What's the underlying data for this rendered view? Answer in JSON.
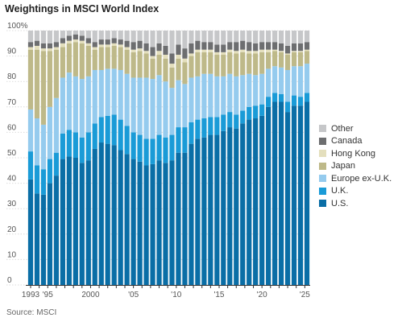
{
  "title": "Weightings in MSCI World Index",
  "source": "Source: MSCI",
  "colors": {
    "U.S.": "#0a6ea6",
    "U.K.": "#1a9bd7",
    "Europe ex-U.K.": "#95cbee",
    "Japan": "#beb989",
    "Hong Kong": "#e4dfbd",
    "Canada": "#6d6e70",
    "Other": "#c6c7c9"
  },
  "chart_data": {
    "type": "bar",
    "stacked": true,
    "ylim": [
      0,
      100
    ],
    "yticks": [
      "0",
      "10",
      "20",
      "30",
      "40",
      "50",
      "60",
      "70",
      "80",
      "90",
      "100%"
    ],
    "xtick_labels": [
      {
        "year": 1993,
        "label": "1993"
      },
      {
        "year": 1995,
        "label": "'95"
      },
      {
        "year": 2000,
        "label": "2000"
      },
      {
        "year": 2005,
        "label": "'05"
      },
      {
        "year": 2010,
        "label": "'10"
      },
      {
        "year": 2015,
        "label": "'15"
      },
      {
        "year": 2020,
        "label": "'20"
      },
      {
        "year": 2025,
        "label": "'25"
      }
    ],
    "legend_position": "right",
    "legend_order": [
      "Other",
      "Canada",
      "Hong Kong",
      "Japan",
      "Europe ex-U.K.",
      "U.K.",
      "U.S."
    ],
    "categories": [
      "1993 Q1",
      "1993 Q4",
      "1994 Q3",
      "1995 Q2",
      "1996 Q1",
      "1996 Q4",
      "1997 Q3",
      "1998 Q2",
      "1999 Q1",
      "1999 Q4",
      "2000 Q3",
      "2001 Q2",
      "2002 Q1",
      "2002 Q4",
      "2003 Q3",
      "2004 Q2",
      "2005 Q1",
      "2005 Q4",
      "2006 Q3",
      "2007 Q2",
      "2008 Q1",
      "2008 Q4",
      "2009 Q3",
      "2010 Q2",
      "2011 Q1",
      "2011 Q4",
      "2012 Q3",
      "2013 Q2",
      "2014 Q1",
      "2014 Q4",
      "2015 Q3",
      "2016 Q2",
      "2017 Q1",
      "2017 Q4",
      "2018 Q3",
      "2019 Q2",
      "2020 Q1",
      "2020 Q4",
      "2021 Q3",
      "2022 Q2",
      "2023 Q1",
      "2023 Q4",
      "2024 Q3",
      "2025 Q2"
    ],
    "series": [
      {
        "name": "U.S.",
        "values": [
          41.5,
          36,
          35.5,
          40,
          43,
          49.5,
          50.5,
          50,
          48,
          49,
          53.5,
          56,
          55.5,
          55,
          53,
          51.5,
          49.5,
          48.5,
          47,
          47.5,
          49,
          48,
          49,
          52,
          52,
          55.5,
          57.5,
          58,
          59,
          59,
          60.5,
          62,
          61.5,
          63.5,
          65,
          65.5,
          66.5,
          70,
          72,
          72,
          68,
          70.5,
          70.5,
          72
        ]
      },
      {
        "name": "U.K.",
        "values": [
          11,
          11,
          10,
          9.5,
          9,
          10,
          10.5,
          10,
          10,
          11,
          10,
          10,
          11,
          12,
          12,
          11,
          10.5,
          10.5,
          10.5,
          10,
          10,
          10,
          10,
          10,
          10,
          8.5,
          7.5,
          7.5,
          7,
          7,
          6.5,
          6,
          5.5,
          5,
          5,
          5,
          4.5,
          4,
          3.5,
          3,
          4,
          4,
          3.5,
          3.5
        ]
      },
      {
        "name": "Europe ex-U.K.",
        "values": [
          16.5,
          18.5,
          17.5,
          20.5,
          21.5,
          22,
          22.5,
          22,
          23,
          22,
          21,
          18.5,
          18.5,
          18,
          19.5,
          20.5,
          21.5,
          22.5,
          24,
          23.5,
          23.5,
          22,
          18.5,
          18.5,
          17,
          17.5,
          17,
          17.5,
          17,
          16,
          15,
          15,
          15,
          14,
          13,
          12,
          12,
          11,
          10.5,
          10.5,
          12.5,
          11.5,
          12,
          11.5
        ]
      },
      {
        "name": "Japan",
        "values": [
          23.5,
          27,
          29,
          22,
          19,
          12,
          11.5,
          13.5,
          14,
          12,
          8,
          9,
          8.5,
          9,
          9,
          9.5,
          10,
          10.5,
          9.5,
          8,
          8,
          9,
          8,
          8.5,
          8.5,
          8.5,
          9.5,
          8.5,
          8.5,
          8.5,
          8.5,
          8.5,
          9,
          9,
          8,
          8.5,
          8.5,
          6.5,
          6,
          6,
          6,
          5.5,
          5.5,
          5
        ]
      },
      {
        "name": "Hong Kong",
        "values": [
          1,
          1.5,
          1,
          1,
          1,
          1.5,
          1,
          1,
          1,
          1,
          1,
          1,
          1,
          1,
          1,
          1,
          1,
          1,
          1,
          1,
          1.5,
          1.5,
          1.5,
          1.5,
          1.5,
          1,
          1,
          1,
          1,
          1,
          1,
          1,
          1,
          1,
          1,
          1,
          1,
          1,
          0.5,
          0.5,
          0.5,
          0.5,
          0.5,
          0.5
        ]
      },
      {
        "name": "Canada",
        "values": [
          2,
          2,
          2,
          2,
          2,
          2,
          2,
          2,
          2,
          2,
          2,
          2,
          2,
          2,
          2,
          2.5,
          3,
          3,
          3,
          3.5,
          3,
          3.5,
          4,
          4,
          4,
          4,
          3.5,
          3,
          3,
          3,
          3,
          3,
          3.5,
          3.5,
          3.5,
          3,
          3,
          3,
          3,
          3,
          3,
          3,
          3,
          3
        ]
      },
      {
        "name": "Other",
        "values": [
          4.5,
          4,
          5,
          5,
          4.5,
          3,
          2,
          1.5,
          2,
          3,
          4.5,
          3.5,
          3.5,
          3,
          3.5,
          4,
          4.5,
          4,
          5,
          6.5,
          5,
          6,
          9,
          5.5,
          7,
          5,
          4,
          4.5,
          4.5,
          5.5,
          5.5,
          4.5,
          4.5,
          4,
          4.5,
          5,
          4.5,
          4.5,
          4.5,
          5,
          6,
          5,
          5,
          4.5
        ]
      }
    ]
  }
}
